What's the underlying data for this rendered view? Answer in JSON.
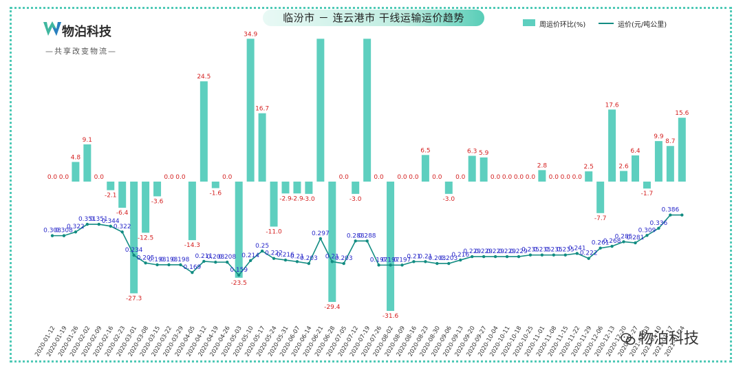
{
  "header": {
    "title": "临汾市 － 连云港市 干线运输运价趋势"
  },
  "brand": {
    "logo_icon": "w-leaf-logo-icon",
    "name": "物泊科技",
    "slogan": "—共享改变物流—"
  },
  "watermark": {
    "icon": "wechat-icon",
    "text": "物泊科技"
  },
  "colors": {
    "bar": "#5ecfbf",
    "line": "#128c82",
    "bar_label": "#d42020",
    "line_label": "#2727c9",
    "border": "#4fc9b6"
  },
  "chart_data": {
    "type": "bar+line",
    "legend_position": "top-right",
    "grid": false,
    "categories": [
      "2020-01-12",
      "2020-01-19",
      "2020-01-26",
      "2020-02-02",
      "2020-02-09",
      "2020-02-16",
      "2020-02-23",
      "2020-03-01",
      "2020-03-08",
      "2020-03-15",
      "2020-03-22",
      "2020-03-29",
      "2020-04-05",
      "2020-04-12",
      "2020-04-19",
      "2020-04-26",
      "2020-05-03",
      "2020-05-10",
      "2020-05-17",
      "2020-05-24",
      "2020-05-31",
      "2020-06-07",
      "2020-06-14",
      "2020-06-21",
      "2020-06-28",
      "2020-07-05",
      "2020-07-12",
      "2020-07-19",
      "2020-07-26",
      "2020-08-02",
      "2020-08-09",
      "2020-08-16",
      "2020-08-23",
      "2020-08-30",
      "2020-09-06",
      "2020-09-13",
      "2020-09-20",
      "2020-09-27",
      "2020-10-04",
      "2020-10-11",
      "2020-10-18",
      "2020-10-25",
      "2020-11-01",
      "2020-11-08",
      "2020-11-15",
      "2020-11-22",
      "2020-11-29",
      "2020-12-06",
      "2020-12-13",
      "2020-12-20",
      "2020-12-27",
      "2021-01-03",
      "2021-01-10",
      "2021-01-17",
      "2021-01-24"
    ],
    "series": [
      {
        "name": "周运价环比(%)",
        "type": "bar",
        "values": [
          0.0,
          0.0,
          4.8,
          9.1,
          0.0,
          -2.1,
          -6.4,
          -27.3,
          -12.5,
          -3.6,
          0.0,
          0.0,
          -14.3,
          24.5,
          -1.6,
          0.0,
          -23.5,
          34.9,
          16.7,
          -11.0,
          -2.9,
          -2.9,
          -3.0,
          34.9,
          -29.4,
          0.0,
          -3.0,
          34.9,
          0.0,
          -31.6,
          0.0,
          0.0,
          6.5,
          0.0,
          -3.0,
          0.0,
          6.3,
          5.9,
          0.0,
          0.0,
          0.0,
          0.0,
          2.8,
          0.0,
          0.0,
          0.0,
          2.5,
          -7.7,
          17.6,
          2.6,
          6.4,
          -1.7,
          9.9,
          8.7,
          15.6
        ],
        "labels": [
          "0.0",
          "0.0",
          "4.8",
          "9.1",
          "0.0",
          "-2.1",
          "-6.4",
          "-27.3",
          "-12.5",
          "-3.6",
          "0.0",
          "0.0",
          "-14.3",
          "24.5",
          "-1.6",
          "0.0",
          "-23.5",
          "34.9",
          "16.7",
          "-11.0",
          "-2.9",
          "-2.9",
          "-3.0",
          "",
          "-29.4",
          "0.0",
          "-3.0",
          "",
          "0.0",
          "-31.6",
          "0.0",
          "0.0",
          "6.5",
          "0.0",
          "-3.0",
          "0.0",
          "6.3",
          "5.9",
          "0.0",
          "0.0",
          "0.0",
          "0.0",
          "2.8",
          "0.0",
          "0.0",
          "0.0",
          "2.5",
          "-7.7",
          "17.6",
          "2.6",
          "6.4",
          "-1.7",
          "9.9",
          "8.7",
          "15.6"
        ]
      },
      {
        "name": "运价(元/吨公里)",
        "type": "line",
        "values": [
          0.308,
          0.308,
          0.322,
          0.351,
          0.351,
          0.344,
          0.322,
          0.234,
          0.205,
          0.198,
          0.198,
          0.198,
          0.169,
          0.211,
          0.208,
          0.208,
          0.159,
          0.214,
          0.25,
          0.222,
          0.216,
          0.21,
          0.203,
          0.297,
          0.21,
          0.203,
          0.288,
          0.288,
          0.197,
          0.197,
          0.197,
          0.21,
          0.21,
          0.203,
          0.203,
          0.216,
          0.229,
          0.229,
          0.229,
          0.229,
          0.229,
          0.235,
          0.235,
          0.235,
          0.235,
          0.241,
          0.222,
          0.261,
          0.268,
          0.285,
          0.281,
          0.309,
          0.336,
          0.386,
          0.386
        ],
        "labels": [
          "0.308",
          "0.308",
          "0.322",
          "0.351",
          "0.351",
          "0.344",
          "0.322",
          "0.234",
          "0.205",
          "0.198",
          "0.198",
          "0.198",
          "0.169",
          "0.211",
          "0.208",
          "0.208",
          "0.159",
          "0.214",
          "0.25",
          "0.222",
          "0.216",
          "0.21",
          "0.203",
          "0.297",
          "0.21",
          "0.203",
          "0.288",
          "0.288",
          "0.197",
          "0.197",
          "0.197",
          "0.21",
          "0.21",
          "0.203",
          "0.203",
          "0.216",
          "0.229",
          "0.229",
          "0.229",
          "0.229",
          "0.229",
          "0.235",
          "0.235",
          "0.235",
          "0.235",
          "0.241",
          "0.222",
          "0.261",
          "0.268",
          "0.285",
          "0.281",
          "0.309",
          "0.336",
          "0.386",
          ""
        ]
      }
    ]
  }
}
